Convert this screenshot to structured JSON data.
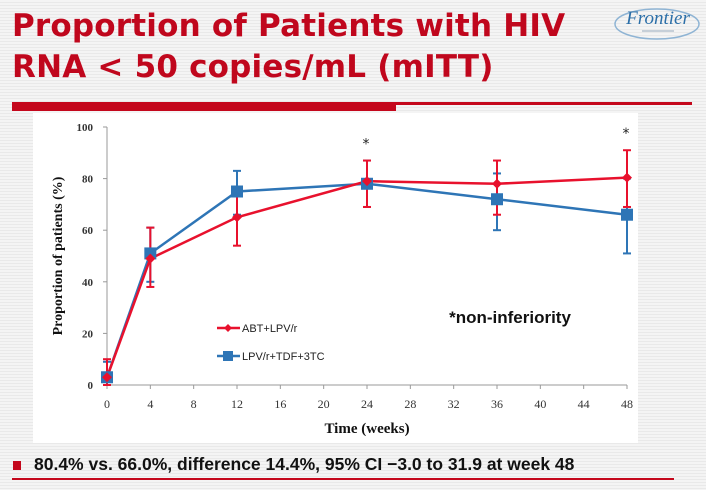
{
  "slide": {
    "title_line1": "Proportion of Patients with HIV",
    "title_line2": "RNA < 50 copies/mL  (mITT)",
    "logo_text": "Frontier",
    "bullet": "80.4% vs. 66.0%, difference 14.4%, 95% CI −3.0 to 31.9 at week 48"
  },
  "colors": {
    "title": "#c0071d",
    "series_red": "#e8112d",
    "series_blue": "#2e75b6",
    "rule": "#c4071c"
  },
  "chart_data": {
    "type": "line",
    "title": "",
    "xlabel": "Time (weeks)",
    "ylabel": "Proportion of patients  (%)",
    "xlim": [
      0,
      48
    ],
    "ylim": [
      0,
      100
    ],
    "x_ticks": [
      0,
      4,
      8,
      12,
      16,
      20,
      24,
      28,
      32,
      36,
      40,
      44,
      48
    ],
    "y_ticks": [
      0,
      20,
      40,
      60,
      80,
      100
    ],
    "grid": false,
    "legend_position": "center-left",
    "annotation": "*non-inferiority",
    "significance_markers": [
      {
        "x": 24,
        "label": "*"
      },
      {
        "x": 48,
        "label": "*"
      }
    ],
    "series": [
      {
        "name": "ABT+LPV/r",
        "marker": "diamond",
        "x": [
          0,
          4,
          12,
          24,
          36,
          48
        ],
        "values": [
          3,
          49,
          65,
          79,
          78,
          80.4
        ],
        "err_low": [
          0,
          38,
          54,
          69,
          66,
          69
        ],
        "err_high": [
          10,
          61,
          76,
          87,
          87,
          91
        ]
      },
      {
        "name": "LPV/r+TDF+3TC",
        "marker": "square",
        "x": [
          0,
          4,
          12,
          24,
          36,
          48
        ],
        "values": [
          3,
          51,
          75,
          78,
          72,
          66.0
        ],
        "err_low": [
          0,
          40,
          66,
          69,
          60,
          51
        ],
        "err_high": [
          9,
          61,
          83,
          87,
          82,
          80
        ]
      }
    ]
  }
}
